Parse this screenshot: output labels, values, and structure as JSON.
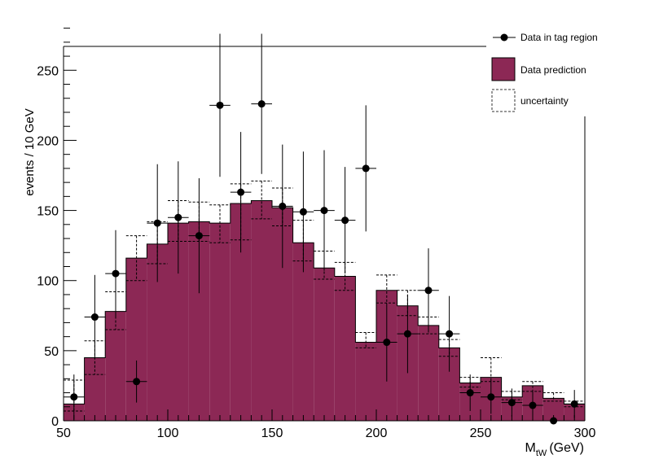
{
  "chart_data": {
    "type": "bar",
    "title": "",
    "xlabel": "M",
    "xlabel_sub": "tW",
    "xlabel_unit": "(GeV)",
    "ylabel": "events / 10 GeV",
    "xlim": [
      50,
      300
    ],
    "ylim": [
      0,
      285
    ],
    "x_ticks": [
      50,
      100,
      150,
      200,
      250,
      300
    ],
    "y_ticks": [
      0,
      50,
      100,
      150,
      200,
      250
    ],
    "grid": false,
    "legend_placement": "top-right",
    "legend": [
      {
        "label": "Data in tag region",
        "style": "marker"
      },
      {
        "label": "Data prediction",
        "style": "fill"
      },
      {
        "label": "uncertainty",
        "style": "dashed-box"
      }
    ],
    "bin_edges": [
      50,
      60,
      70,
      80,
      90,
      100,
      110,
      120,
      130,
      140,
      150,
      160,
      170,
      180,
      190,
      200,
      210,
      220,
      230,
      240,
      250,
      260,
      270,
      280,
      290,
      300
    ],
    "series": [
      {
        "name": "Data prediction",
        "kind": "histogram",
        "color": "#8c2855",
        "values": [
          12,
          45,
          78,
          116,
          126,
          141,
          142,
          141,
          155,
          157,
          152,
          127,
          109,
          103,
          56,
          93,
          82,
          68,
          52,
          27,
          31,
          17,
          25,
          16,
          12
        ],
        "unc_low": [
          7,
          33,
          65,
          100,
          112,
          128,
          128,
          127,
          129,
          144,
          139,
          114,
          101,
          93,
          52,
          84,
          75,
          62,
          46,
          24,
          28,
          15,
          21,
          14,
          10
        ],
        "unc_high": [
          29,
          57,
          92,
          132,
          142,
          157,
          156,
          154,
          169,
          171,
          166,
          143,
          121,
          113,
          63,
          104,
          93,
          74,
          58,
          31,
          45,
          21,
          28,
          20,
          14
        ]
      },
      {
        "name": "Data in tag region",
        "kind": "points",
        "values": [
          17,
          74,
          105,
          28,
          141,
          145,
          132,
          225,
          163,
          226,
          153,
          149,
          150,
          143,
          180,
          56,
          62,
          93,
          62,
          20,
          17,
          13,
          11,
          0,
          12
        ],
        "err": [
          16,
          30,
          31,
          15,
          42,
          40,
          41,
          51,
          43,
          50,
          44,
          43,
          43,
          38,
          45,
          28,
          28,
          30,
          27,
          13,
          12,
          10,
          10,
          0,
          10
        ]
      }
    ]
  }
}
